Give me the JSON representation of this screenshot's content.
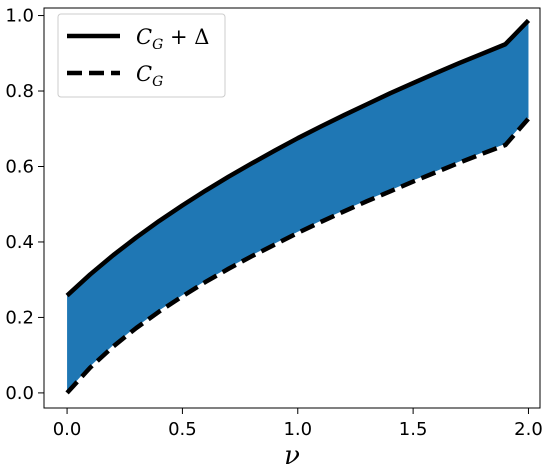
{
  "chart_data": {
    "type": "area",
    "xlabel": "ν",
    "ylabel": "",
    "title": "",
    "xlim": [
      -0.1,
      2.05
    ],
    "ylim": [
      -0.04,
      1.02
    ],
    "xticks": [
      0.0,
      0.5,
      1.0,
      1.5,
      2.0
    ],
    "xtick_labels": [
      "0.0",
      "0.5",
      "1.0",
      "1.5",
      "2.0"
    ],
    "yticks": [
      0.0,
      0.2,
      0.4,
      0.6,
      0.8,
      1.0
    ],
    "ytick_labels": [
      "0.0",
      "0.2",
      "0.4",
      "0.6",
      "0.8",
      "1.0"
    ],
    "grid": false,
    "legend_position": "top-left",
    "fill_color": "#1f77b4",
    "x": [
      0.0,
      0.1,
      0.2,
      0.3,
      0.4,
      0.5,
      0.6,
      0.7,
      0.8,
      0.9,
      1.0,
      1.1,
      1.2,
      1.3,
      1.4,
      1.5,
      1.6,
      1.7,
      1.8,
      1.9,
      2.0
    ],
    "series": [
      {
        "name": "C_G + Δ",
        "legend_main": "C",
        "legend_sub": "G",
        "legend_suffix": " + Δ",
        "style": "solid",
        "color": "#000000",
        "values": [
          0.258,
          0.314,
          0.365,
          0.412,
          0.456,
          0.497,
          0.536,
          0.573,
          0.608,
          0.642,
          0.675,
          0.706,
          0.736,
          0.765,
          0.794,
          0.821,
          0.848,
          0.874,
          0.899,
          0.924,
          0.987
        ]
      },
      {
        "name": "C_G",
        "legend_main": "C",
        "legend_sub": "G",
        "legend_suffix": "",
        "style": "dashed",
        "color": "#000000",
        "values": [
          0.0,
          0.067,
          0.123,
          0.172,
          0.216,
          0.256,
          0.294,
          0.329,
          0.362,
          0.393,
          0.424,
          0.453,
          0.481,
          0.508,
          0.534,
          0.56,
          0.585,
          0.61,
          0.634,
          0.657,
          0.727
        ]
      }
    ]
  }
}
